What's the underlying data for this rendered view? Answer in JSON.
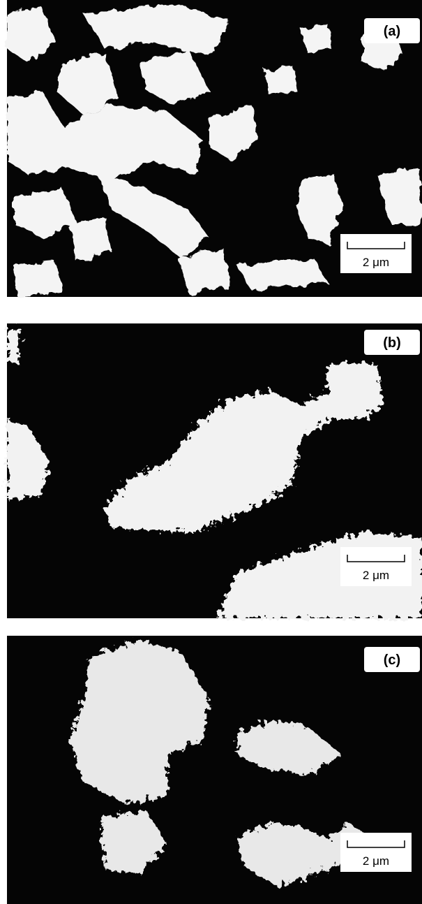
{
  "panels": [
    {
      "label": "(a)",
      "scale": "2 μm"
    },
    {
      "label": "(b)",
      "scale": "2 μm"
    },
    {
      "label": "(c)",
      "scale": "2 μm"
    }
  ]
}
